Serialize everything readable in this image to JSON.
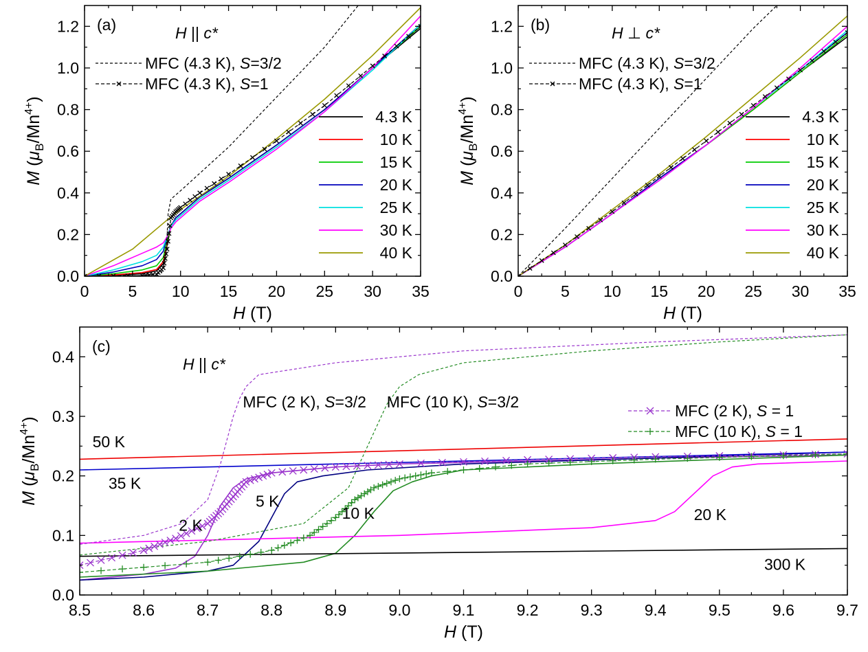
{
  "chart_data": [
    {
      "type": "line",
      "panel_label": "(a)",
      "field_label": "H || c*",
      "xlabel": "H (T)",
      "ylabel": "M (μB/Mn4+)",
      "xlim": [
        0,
        35
      ],
      "ylim": [
        0,
        1.3
      ],
      "xticks": [
        0,
        5,
        10,
        15,
        20,
        25,
        30,
        35
      ],
      "yticks": [
        0.0,
        0.2,
        0.4,
        0.6,
        0.8,
        1.0,
        1.2
      ],
      "legend_top": [
        "MFC (4.3 K), S=3/2",
        "MFC (4.3 K), S=1"
      ],
      "series": [
        {
          "name": "4.3 K",
          "color": "#000000",
          "x": [
            0,
            3,
            6,
            7.5,
            8.2,
            8.6,
            9,
            9.5,
            10,
            12,
            15,
            20,
            25,
            30,
            35
          ],
          "y": [
            0,
            0.004,
            0.012,
            0.025,
            0.06,
            0.15,
            0.24,
            0.28,
            0.3,
            0.38,
            0.47,
            0.63,
            0.8,
            1.0,
            1.19
          ]
        },
        {
          "name": "10 K",
          "color": "#ff0000",
          "x": [
            0,
            3,
            6,
            7.5,
            8.2,
            8.6,
            9,
            9.5,
            10,
            12,
            15,
            20,
            25,
            30,
            35
          ],
          "y": [
            0,
            0.006,
            0.017,
            0.032,
            0.07,
            0.16,
            0.24,
            0.28,
            0.3,
            0.38,
            0.47,
            0.63,
            0.8,
            1.0,
            1.2
          ]
        },
        {
          "name": "15 K",
          "color": "#00cc00",
          "x": [
            0,
            3,
            6,
            7.5,
            8.2,
            8.6,
            9,
            9.5,
            10,
            12,
            15,
            20,
            25,
            30,
            35
          ],
          "y": [
            0,
            0.012,
            0.03,
            0.05,
            0.09,
            0.17,
            0.24,
            0.28,
            0.3,
            0.38,
            0.47,
            0.63,
            0.8,
            1.0,
            1.2
          ]
        },
        {
          "name": "20 K",
          "color": "#0000bb",
          "x": [
            0,
            3,
            6,
            7.5,
            8.2,
            8.6,
            9,
            9.5,
            10,
            12,
            15,
            20,
            25,
            30,
            35
          ],
          "y": [
            0,
            0.02,
            0.05,
            0.08,
            0.12,
            0.19,
            0.24,
            0.28,
            0.3,
            0.38,
            0.47,
            0.63,
            0.8,
            1.0,
            1.21
          ]
        },
        {
          "name": "25 K",
          "color": "#00e0e0",
          "x": [
            0,
            3,
            6,
            7.5,
            8.2,
            8.6,
            9,
            9.5,
            10,
            12,
            15,
            20,
            25,
            30,
            35
          ],
          "y": [
            0,
            0.03,
            0.07,
            0.1,
            0.14,
            0.19,
            0.24,
            0.27,
            0.29,
            0.37,
            0.46,
            0.62,
            0.79,
            0.99,
            1.21
          ]
        },
        {
          "name": "30 K",
          "color": "#ff00ff",
          "x": [
            0,
            3,
            6,
            7.5,
            8.2,
            8.6,
            9,
            9.5,
            10,
            12,
            15,
            20,
            25,
            30,
            35
          ],
          "y": [
            0,
            0.05,
            0.11,
            0.14,
            0.16,
            0.19,
            0.23,
            0.26,
            0.28,
            0.36,
            0.45,
            0.61,
            0.79,
            1.0,
            1.25
          ]
        },
        {
          "name": "40 K",
          "color": "#999900",
          "x": [
            0,
            5,
            8.6,
            10,
            15,
            20,
            25,
            30,
            35
          ],
          "y": [
            0,
            0.13,
            0.27,
            0.32,
            0.48,
            0.66,
            0.85,
            1.06,
            1.29
          ]
        },
        {
          "name": "MFC (4.3 K), S=3/2",
          "color": "#000000",
          "style": "dashed",
          "x": [
            0,
            6,
            8,
            8.5,
            8.7,
            9,
            10,
            15,
            20,
            25,
            28.5
          ],
          "y": [
            0,
            0.003,
            0.015,
            0.1,
            0.3,
            0.37,
            0.41,
            0.62,
            0.86,
            1.1,
            1.3
          ]
        },
        {
          "name": "MFC (4.3 K), S=1",
          "color": "#000000",
          "style": "dash-dot-marker",
          "x": [
            0,
            6,
            7.5,
            8.2,
            8.6,
            9,
            9.5,
            10,
            12,
            15,
            20,
            25,
            30,
            35
          ],
          "y": [
            0,
            0.003,
            0.01,
            0.04,
            0.13,
            0.28,
            0.31,
            0.33,
            0.4,
            0.49,
            0.65,
            0.82,
            1.01,
            1.2
          ]
        }
      ]
    },
    {
      "type": "line",
      "panel_label": "(b)",
      "field_label": "H ⊥ c*",
      "xlabel": "H (T)",
      "ylabel": "M (μB/Mn4+)",
      "xlim": [
        0,
        35
      ],
      "ylim": [
        0,
        1.3
      ],
      "xticks": [
        0,
        5,
        10,
        15,
        20,
        25,
        30,
        35
      ],
      "yticks": [
        0.0,
        0.2,
        0.4,
        0.6,
        0.8,
        1.0,
        1.2
      ],
      "legend_top": [
        "MFC (4.3 K), S=3/2",
        "MFC (4.3 K), S=1"
      ],
      "series": [
        {
          "name": "4.3 K",
          "color": "#000000",
          "x": [
            0,
            5,
            10,
            15,
            20,
            25,
            30,
            35
          ],
          "y": [
            0,
            0.14,
            0.3,
            0.47,
            0.63,
            0.8,
            0.98,
            1.15
          ]
        },
        {
          "name": "10 K",
          "color": "#ff0000",
          "x": [
            0,
            5,
            10,
            15,
            20,
            25,
            30,
            35
          ],
          "y": [
            0,
            0.14,
            0.3,
            0.47,
            0.63,
            0.8,
            0.98,
            1.16
          ]
        },
        {
          "name": "15 K",
          "color": "#00cc00",
          "x": [
            0,
            5,
            10,
            15,
            20,
            25,
            30,
            35
          ],
          "y": [
            0,
            0.14,
            0.3,
            0.47,
            0.63,
            0.8,
            0.98,
            1.16
          ]
        },
        {
          "name": "20 K",
          "color": "#0000bb",
          "x": [
            0,
            5,
            10,
            15,
            20,
            25,
            30,
            35
          ],
          "y": [
            0,
            0.14,
            0.3,
            0.47,
            0.63,
            0.81,
            0.99,
            1.17
          ]
        },
        {
          "name": "25 K",
          "color": "#00e0e0",
          "x": [
            0,
            5,
            10,
            15,
            20,
            25,
            30,
            35
          ],
          "y": [
            0,
            0.14,
            0.3,
            0.46,
            0.63,
            0.81,
            0.99,
            1.18
          ]
        },
        {
          "name": "30 K",
          "color": "#ff00ff",
          "x": [
            0,
            5,
            10,
            15,
            20,
            25,
            30,
            35
          ],
          "y": [
            0,
            0.14,
            0.3,
            0.46,
            0.63,
            0.81,
            1.0,
            1.2
          ]
        },
        {
          "name": "40 K",
          "color": "#999900",
          "x": [
            0,
            5,
            10,
            15,
            20,
            25,
            30,
            35
          ],
          "y": [
            0,
            0.15,
            0.32,
            0.49,
            0.67,
            0.86,
            1.05,
            1.25
          ]
        },
        {
          "name": "MFC (4.3 K), S=3/2",
          "color": "#000000",
          "style": "dashed",
          "x": [
            0,
            5,
            10,
            15,
            20,
            25,
            27.5
          ],
          "y": [
            0,
            0.23,
            0.47,
            0.71,
            0.95,
            1.19,
            1.3
          ]
        },
        {
          "name": "MFC (4.3 K), S=1",
          "color": "#000000",
          "style": "dash-dot-marker",
          "x": [
            0,
            5,
            10,
            15,
            20,
            25,
            30,
            35
          ],
          "y": [
            0,
            0.15,
            0.31,
            0.48,
            0.65,
            0.82,
            0.99,
            1.17
          ]
        }
      ]
    },
    {
      "type": "line",
      "panel_label": "(c)",
      "field_label": "H || c*",
      "xlabel": "H (T)",
      "ylabel": "M (μB/Mn4+)",
      "xlim": [
        8.5,
        9.7
      ],
      "ylim": [
        0,
        0.45
      ],
      "xticks": [
        8.5,
        8.6,
        8.7,
        8.8,
        8.9,
        9.0,
        9.1,
        9.2,
        9.3,
        9.4,
        9.5,
        9.6,
        9.7
      ],
      "yticks": [
        0.0,
        0.1,
        0.2,
        0.3,
        0.4
      ],
      "legend": [
        "MFC (2 K), S = 1",
        "MFC (10 K), S = 1"
      ],
      "annotations": [
        "MFC (2 K), S=3/2",
        "MFC (10 K), S=3/2",
        "50 K",
        "35 K",
        "2 K",
        "5 K",
        "10 K",
        "20 K",
        "300 K"
      ],
      "series": [
        {
          "name": "2 K",
          "color": "#9933cc",
          "x": [
            8.5,
            8.6,
            8.65,
            8.68,
            8.7,
            8.72,
            8.74,
            8.76,
            8.8,
            8.9,
            9.0,
            9.2,
            9.4,
            9.7
          ],
          "y": [
            0.025,
            0.035,
            0.045,
            0.065,
            0.1,
            0.15,
            0.18,
            0.195,
            0.205,
            0.215,
            0.22,
            0.225,
            0.23,
            0.235
          ]
        },
        {
          "name": "5 K",
          "color": "#000080",
          "x": [
            8.5,
            8.6,
            8.7,
            8.74,
            8.78,
            8.8,
            8.82,
            8.84,
            8.88,
            8.95,
            9.1,
            9.4,
            9.7
          ],
          "y": [
            0.025,
            0.03,
            0.04,
            0.05,
            0.09,
            0.13,
            0.17,
            0.19,
            0.2,
            0.21,
            0.22,
            0.23,
            0.24
          ]
        },
        {
          "name": "10 K",
          "color": "#228b22",
          "x": [
            8.5,
            8.7,
            8.85,
            8.9,
            8.93,
            8.96,
            8.99,
            9.02,
            9.05,
            9.1,
            9.3,
            9.7
          ],
          "y": [
            0.03,
            0.04,
            0.055,
            0.07,
            0.1,
            0.14,
            0.175,
            0.19,
            0.2,
            0.21,
            0.22,
            0.235
          ]
        },
        {
          "name": "20 K",
          "color": "#ff00ff",
          "x": [
            8.5,
            9.0,
            9.3,
            9.4,
            9.43,
            9.46,
            9.49,
            9.52,
            9.56,
            9.7
          ],
          "y": [
            0.087,
            0.1,
            0.113,
            0.125,
            0.14,
            0.17,
            0.2,
            0.215,
            0.22,
            0.225
          ]
        },
        {
          "name": "35 K",
          "color": "#0000cc",
          "x": [
            8.5,
            9.7
          ],
          "y": [
            0.21,
            0.24
          ]
        },
        {
          "name": "50 K",
          "color": "#ee0000",
          "x": [
            8.5,
            9.7
          ],
          "y": [
            0.228,
            0.262
          ]
        },
        {
          "name": "300 K",
          "color": "#000000",
          "x": [
            8.5,
            9.7
          ],
          "y": [
            0.065,
            0.078
          ]
        },
        {
          "name": "MFC (2 K), S=3/2",
          "color": "#9933cc",
          "style": "dashed",
          "x": [
            8.5,
            8.6,
            8.66,
            8.7,
            8.72,
            8.73,
            8.74,
            8.75,
            8.76,
            8.78,
            8.9,
            9.1,
            9.4,
            9.7
          ],
          "y": [
            0.085,
            0.1,
            0.12,
            0.16,
            0.22,
            0.26,
            0.3,
            0.33,
            0.35,
            0.37,
            0.39,
            0.41,
            0.425,
            0.437
          ]
        },
        {
          "name": "MFC (10 K), S=3/2",
          "color": "#228b22",
          "style": "dashed",
          "x": [
            8.5,
            8.7,
            8.85,
            8.92,
            8.95,
            8.98,
            9.0,
            9.03,
            9.1,
            9.3,
            9.5,
            9.7
          ],
          "y": [
            0.067,
            0.09,
            0.12,
            0.18,
            0.25,
            0.32,
            0.35,
            0.37,
            0.39,
            0.41,
            0.425,
            0.437
          ]
        },
        {
          "name": "MFC (2 K), S = 1",
          "color": "#9933cc",
          "style": "dashed-x",
          "x": [
            8.5,
            8.6,
            8.65,
            8.7,
            8.72,
            8.74,
            8.76,
            8.8,
            8.9,
            9.0,
            9.2,
            9.4,
            9.7
          ],
          "y": [
            0.05,
            0.075,
            0.095,
            0.12,
            0.14,
            0.165,
            0.19,
            0.205,
            0.215,
            0.22,
            0.227,
            0.232,
            0.237
          ]
        },
        {
          "name": "MFC (10 K), S = 1",
          "color": "#228b22",
          "style": "dashed-plus",
          "x": [
            8.5,
            8.7,
            8.8,
            8.86,
            8.9,
            8.93,
            8.96,
            9.0,
            9.05,
            9.2,
            9.4,
            9.7
          ],
          "y": [
            0.038,
            0.055,
            0.075,
            0.1,
            0.13,
            0.16,
            0.18,
            0.195,
            0.205,
            0.22,
            0.228,
            0.237
          ]
        }
      ]
    }
  ]
}
